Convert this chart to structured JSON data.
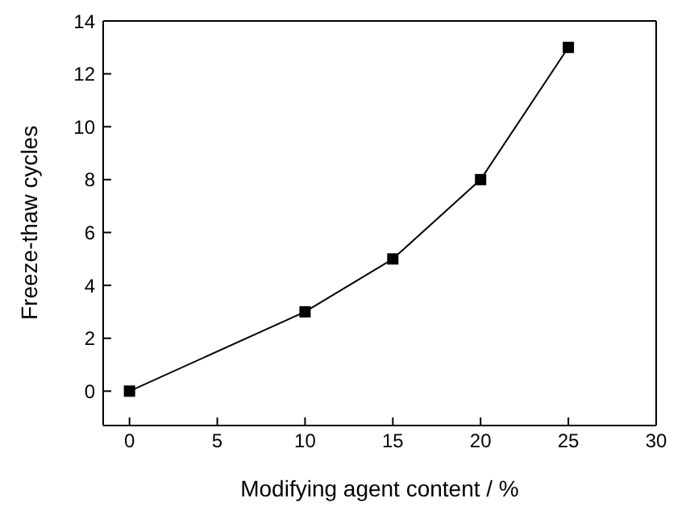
{
  "chart_data": {
    "type": "line",
    "xlabel": "Modifying agent content / %",
    "ylabel": "Freeze-thaw cycles",
    "x": [
      0,
      10,
      15,
      20,
      25
    ],
    "series": [
      {
        "color": "#000000",
        "values": [
          0,
          3,
          5,
          8,
          13
        ]
      }
    ],
    "xlim": [
      -1.5,
      30
    ],
    "xticks": [
      0,
      5,
      10,
      15,
      20,
      25,
      30
    ],
    "ylim": [
      -1.3,
      14
    ],
    "yticks": [
      0,
      2,
      4,
      6,
      8,
      10,
      12,
      14
    ],
    "marker": "square",
    "line_style": "solid"
  }
}
